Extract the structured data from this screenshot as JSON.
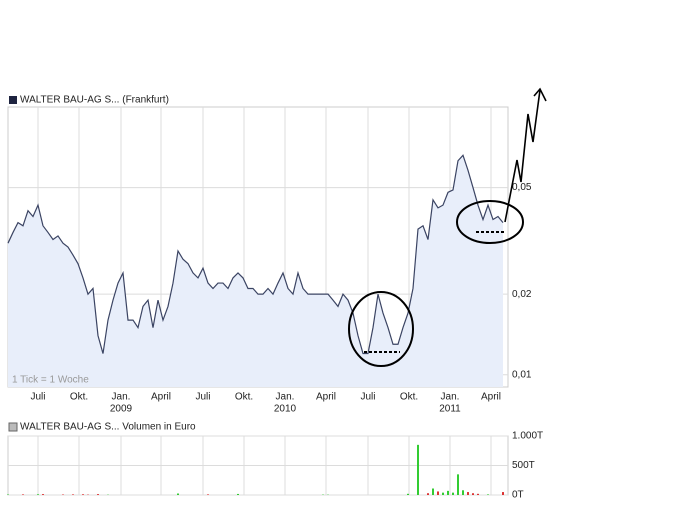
{
  "chart_data": [
    {
      "type": "line",
      "title": "WALTER BAU-AG S... (Frankfurt)",
      "note": "1 Tick = 1 Woche",
      "values": [
        0.031,
        0.034,
        0.037,
        0.036,
        0.041,
        0.039,
        0.043,
        0.036,
        0.034,
        0.032,
        0.033,
        0.031,
        0.03,
        0.028,
        0.026,
        0.023,
        0.02,
        0.021,
        0.014,
        0.012,
        0.016,
        0.019,
        0.022,
        0.024,
        0.016,
        0.016,
        0.015,
        0.018,
        0.019,
        0.015,
        0.019,
        0.016,
        0.018,
        0.022,
        0.029,
        0.027,
        0.026,
        0.024,
        0.023,
        0.025,
        0.022,
        0.021,
        0.022,
        0.022,
        0.021,
        0.023,
        0.024,
        0.023,
        0.021,
        0.021,
        0.02,
        0.02,
        0.021,
        0.02,
        0.022,
        0.024,
        0.021,
        0.02,
        0.024,
        0.021,
        0.02,
        0.02,
        0.02,
        0.02,
        0.02,
        0.019,
        0.018,
        0.02,
        0.019,
        0.017,
        0.014,
        0.012,
        0.012,
        0.015,
        0.02,
        0.017,
        0.015,
        0.013,
        0.013,
        0.015,
        0.017,
        0.021,
        0.035,
        0.036,
        0.032,
        0.045,
        0.042,
        0.043,
        0.048,
        0.049,
        0.063,
        0.066,
        0.058,
        0.05,
        0.043,
        0.038,
        0.043,
        0.038,
        0.039,
        0.037
      ],
      "color": "#3b4463",
      "fill": "#e8eefa",
      "log_scale": true,
      "grid": true,
      "ylim": [
        0.009,
        0.1
      ],
      "yticks": [
        {
          "value": 0.05,
          "label": "0,05"
        },
        {
          "value": 0.02,
          "label": "0,02"
        },
        {
          "value": 0.01,
          "label": "0,01"
        }
      ],
      "xticks": [
        {
          "value": 6,
          "label": "Juli"
        },
        {
          "value": 14.2,
          "label": "Okt."
        },
        {
          "value": 22.6,
          "label": "Jan."
        },
        {
          "value": 30.6,
          "label": "April"
        },
        {
          "value": 39,
          "label": "Juli"
        },
        {
          "value": 47.2,
          "label": "Okt."
        },
        {
          "value": 55.4,
          "label": "Jan."
        },
        {
          "value": 63.6,
          "label": "April"
        },
        {
          "value": 72,
          "label": "Juli"
        },
        {
          "value": 80.2,
          "label": "Okt."
        },
        {
          "value": 88.4,
          "label": "Jan."
        },
        {
          "value": 96.6,
          "label": "April"
        }
      ],
      "year_labels": [
        {
          "value": 22.6,
          "label": "2009"
        },
        {
          "value": 55.4,
          "label": "2010"
        },
        {
          "value": 88.4,
          "label": "2011"
        }
      ]
    },
    {
      "type": "bar",
      "title": "WALTER BAU-AG S... Volumen in Euro",
      "values": [
        8,
        0,
        0,
        10,
        0,
        0,
        12,
        15,
        0,
        0,
        0,
        8,
        0,
        10,
        0,
        12,
        6,
        0,
        15,
        0,
        5,
        0,
        0,
        0,
        0,
        0,
        0,
        0,
        0,
        0,
        0,
        0,
        0,
        0,
        25,
        0,
        0,
        0,
        0,
        0,
        10,
        0,
        0,
        0,
        0,
        0,
        18,
        0,
        0,
        0,
        0,
        0,
        0,
        0,
        0,
        0,
        0,
        0,
        0,
        0,
        0,
        0,
        0,
        6,
        5,
        0,
        0,
        0,
        0,
        0,
        0,
        0,
        0,
        0,
        0,
        0,
        0,
        0,
        0,
        0,
        20,
        0,
        850,
        0,
        30,
        110,
        60,
        40,
        70,
        40,
        350,
        80,
        50,
        30,
        20,
        0,
        10,
        0,
        0,
        50
      ],
      "up_color": "#33cc33",
      "down_color": "#dd3333",
      "grid": true,
      "ylim": [
        0,
        1000
      ],
      "yticks": [
        {
          "value": 1000,
          "label": "1.000T"
        },
        {
          "value": 500,
          "label": "500T"
        },
        {
          "value": 0,
          "label": "0T"
        }
      ]
    }
  ]
}
